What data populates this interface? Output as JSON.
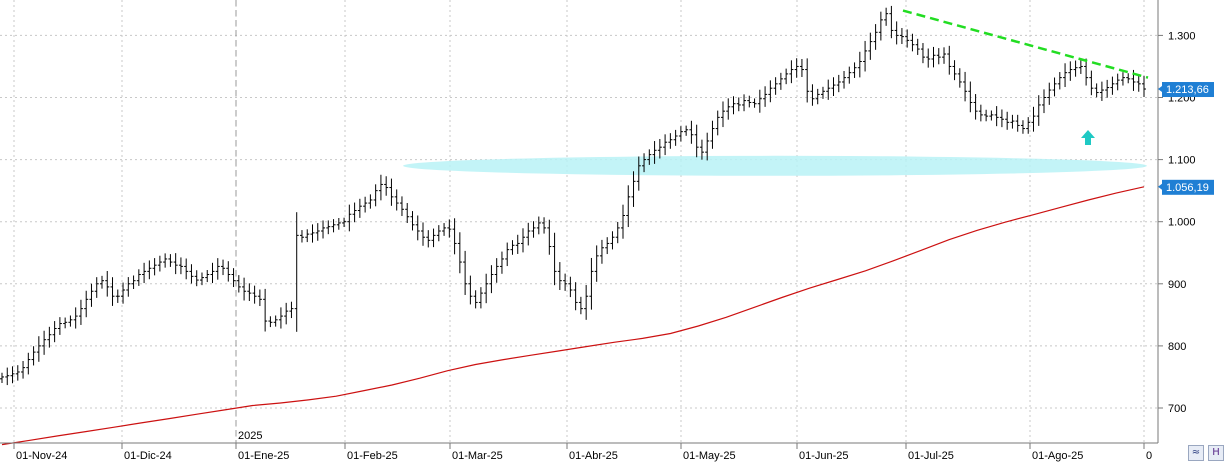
{
  "chart_data": {
    "type": "ohlc",
    "ylim": [
      640,
      1340
    ],
    "y_ticks": [
      700,
      800,
      900,
      "1.000",
      "1.100",
      "1.200",
      "1.300"
    ],
    "y_tick_values": [
      700,
      800,
      900,
      1000,
      1100,
      1200,
      1300
    ],
    "x_ticks": [
      "01-Nov-24",
      "01-Dic-24",
      "01-Ene-25",
      "01-Feb-25",
      "01-Mar-25",
      "01-Abr-25",
      "01-May-25",
      "01-Jun-25",
      "01-Jul-25",
      "01-Ago-25",
      "0"
    ],
    "year_marker": "2025",
    "grid": true,
    "last_price_label": "1.213,66",
    "last_price": 1213.66,
    "ma_label": "1.056,19",
    "ma_value": 1056.19,
    "trendline": {
      "from": 1340,
      "to": 1232
    },
    "support_zone_center": 1090,
    "arrow": "up",
    "moving_average": [
      641,
      648,
      655,
      662,
      669,
      676,
      683,
      690,
      697,
      704,
      708,
      713,
      719,
      728,
      737,
      748,
      760,
      770,
      778,
      785,
      792,
      799,
      806,
      812,
      820,
      832,
      846,
      862,
      878,
      893,
      907,
      921,
      937,
      954,
      971,
      986,
      999,
      1011,
      1023,
      1035,
      1046,
      1056.19
    ],
    "closes": [
      750,
      752,
      755,
      758,
      765,
      778,
      790,
      800,
      810,
      818,
      828,
      836,
      838,
      842,
      848,
      860,
      875,
      888,
      900,
      905,
      895,
      880,
      880,
      890,
      900,
      905,
      915,
      920,
      925,
      930,
      935,
      940,
      935,
      930,
      928,
      920,
      912,
      906,
      910,
      915,
      920,
      928,
      925,
      915,
      905,
      895,
      888,
      885,
      880,
      875,
      840,
      838,
      842,
      848,
      856,
      860,
      978,
      975,
      980,
      982,
      985,
      990,
      992,
      995,
      998,
      1000,
      1012,
      1018,
      1025,
      1030,
      1035,
      1050,
      1060,
      1055,
      1040,
      1030,
      1020,
      1008,
      995,
      985,
      975,
      970,
      978,
      985,
      990,
      988,
      965,
      935,
      900,
      880,
      870,
      885,
      900,
      915,
      928,
      940,
      955,
      962,
      965,
      975,
      985,
      990,
      998,
      990,
      960,
      920,
      905,
      900,
      890,
      870,
      860,
      880,
      920,
      945,
      958,
      965,
      975,
      990,
      1010,
      1040,
      1065,
      1090,
      1100,
      1108,
      1115,
      1120,
      1128,
      1132,
      1138,
      1145,
      1148,
      1140,
      1120,
      1112,
      1130,
      1150,
      1168,
      1178,
      1185,
      1190,
      1188,
      1195,
      1192,
      1190,
      1198,
      1205,
      1215,
      1222,
      1230,
      1238,
      1245,
      1250,
      1245,
      1210,
      1198,
      1205,
      1210,
      1215,
      1220,
      1225,
      1232,
      1240,
      1248,
      1258,
      1275,
      1290,
      1305,
      1325,
      1335,
      1308,
      1300,
      1298,
      1292,
      1285,
      1278,
      1265,
      1262,
      1268,
      1265,
      1270,
      1250,
      1238,
      1225,
      1210,
      1192,
      1178,
      1172,
      1170,
      1172,
      1168,
      1165,
      1160,
      1162,
      1155,
      1150,
      1160,
      1170,
      1188,
      1200,
      1212,
      1222,
      1232,
      1240,
      1245,
      1248,
      1250,
      1232,
      1215,
      1208,
      1212,
      1216,
      1222,
      1228,
      1232,
      1230,
      1225,
      1222,
      1213.66
    ]
  },
  "ui": {
    "zoom_button": "≈",
    "save_button": "H"
  }
}
